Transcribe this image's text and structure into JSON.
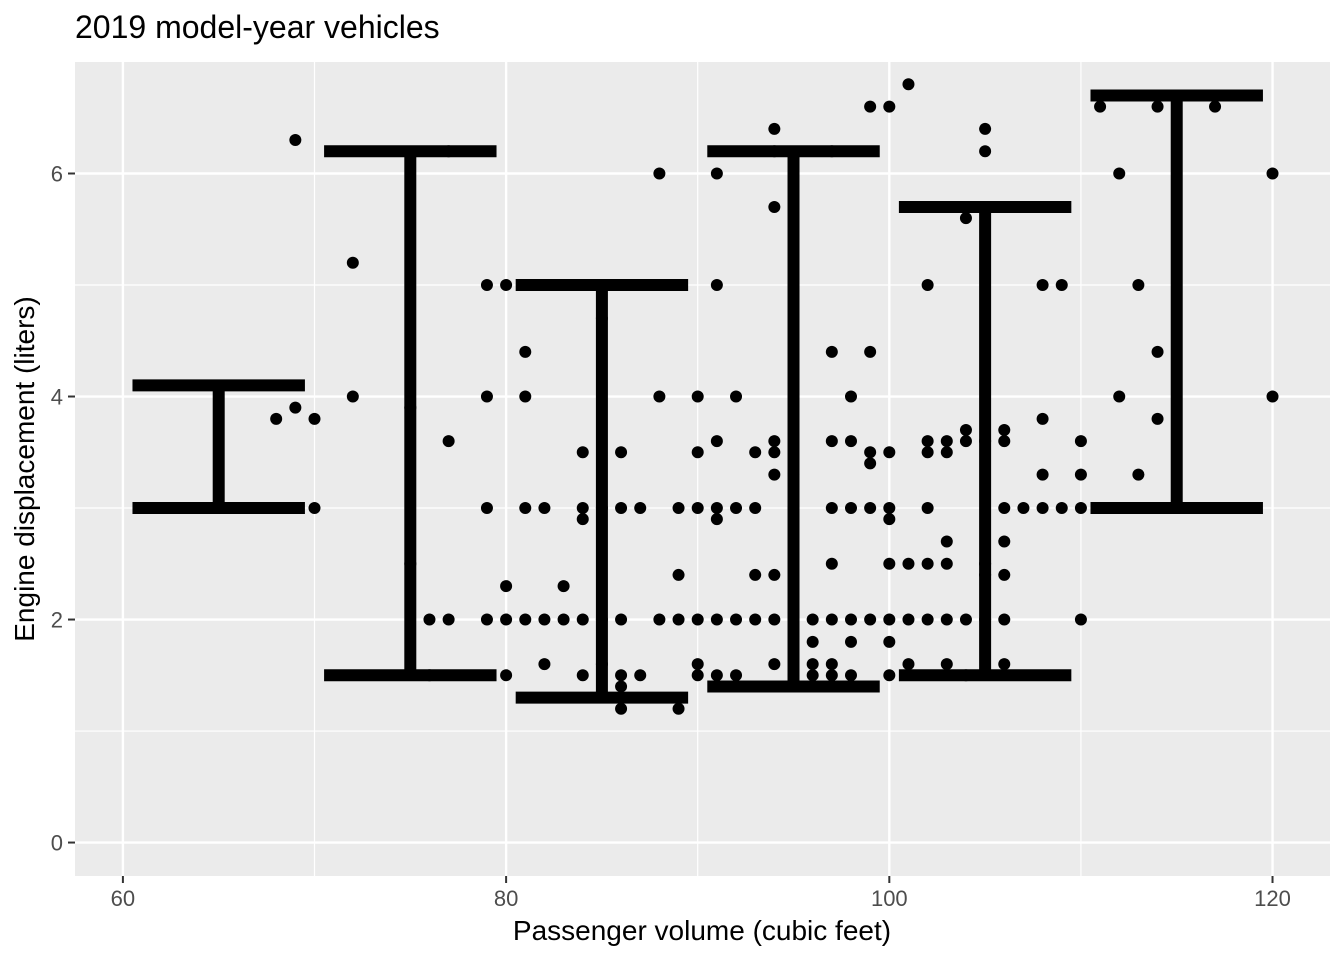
{
  "chart_data": {
    "type": "scatter",
    "title": "2019 model-year vehicles",
    "xlabel": "Passenger volume (cubic feet)",
    "ylabel": "Engine displacement (liters)",
    "xlim": [
      57.5,
      123
    ],
    "ylim": [
      -0.3,
      7.0
    ],
    "x_ticks": [
      60,
      80,
      100,
      120
    ],
    "y_ticks": [
      0,
      2,
      4,
      6
    ],
    "grid": true,
    "legend": "none",
    "colors": {
      "panel": "#EBEBEB",
      "grid": "#FFFFFF",
      "mark": "#000000",
      "text": "#4D4D4D"
    },
    "error_bars": [
      {
        "x": 65,
        "ymin": 3.0,
        "ymax": 4.1
      },
      {
        "x": 75,
        "ymin": 1.5,
        "ymax": 6.2
      },
      {
        "x": 85,
        "ymin": 1.3,
        "ymax": 5.0
      },
      {
        "x": 95,
        "ymin": 1.4,
        "ymax": 6.2
      },
      {
        "x": 105,
        "ymin": 1.5,
        "ymax": 5.7
      },
      {
        "x": 115,
        "ymin": 3.0,
        "ymax": 6.7
      }
    ],
    "points": [
      [
        68,
        3.8
      ],
      [
        68,
        3.0
      ],
      [
        69,
        6.3
      ],
      [
        69,
        3.9
      ],
      [
        70,
        3.8
      ],
      [
        70,
        3.0
      ],
      [
        72,
        5.2
      ],
      [
        72,
        4.0
      ],
      [
        75,
        3.9
      ],
      [
        75,
        2.5
      ],
      [
        76,
        2.0
      ],
      [
        76,
        1.5
      ],
      [
        77,
        6.2
      ],
      [
        77,
        3.6
      ],
      [
        77,
        2.0
      ],
      [
        79,
        5.0
      ],
      [
        79,
        4.0
      ],
      [
        79,
        3.0
      ],
      [
        79,
        2.0
      ],
      [
        80,
        5.0
      ],
      [
        80,
        2.3
      ],
      [
        80,
        2.0
      ],
      [
        80,
        1.5
      ],
      [
        81,
        4.4
      ],
      [
        81,
        4.0
      ],
      [
        81,
        3.0
      ],
      [
        81,
        2.0
      ],
      [
        82,
        3.0
      ],
      [
        82,
        2.0
      ],
      [
        82,
        1.6
      ],
      [
        83,
        5.0
      ],
      [
        83,
        2.3
      ],
      [
        83,
        2.0
      ],
      [
        84,
        3.5
      ],
      [
        84,
        3.0
      ],
      [
        84,
        2.9
      ],
      [
        84,
        2.0
      ],
      [
        84,
        1.5
      ],
      [
        85,
        4.7
      ],
      [
        85,
        3.0
      ],
      [
        85,
        2.0
      ],
      [
        85,
        1.6
      ],
      [
        86,
        5.0
      ],
      [
        86,
        3.5
      ],
      [
        86,
        3.0
      ],
      [
        86,
        2.0
      ],
      [
        86,
        1.5
      ],
      [
        86,
        1.4
      ],
      [
        86,
        1.2
      ],
      [
        87,
        3.0
      ],
      [
        87,
        1.5
      ],
      [
        88,
        6.0
      ],
      [
        88,
        4.0
      ],
      [
        88,
        2.0
      ],
      [
        89,
        3.0
      ],
      [
        89,
        2.4
      ],
      [
        89,
        2.0
      ],
      [
        89,
        1.2
      ],
      [
        90,
        4.0
      ],
      [
        90,
        3.5
      ],
      [
        90,
        3.0
      ],
      [
        90,
        2.0
      ],
      [
        90,
        1.6
      ],
      [
        90,
        1.5
      ],
      [
        91,
        6.0
      ],
      [
        91,
        5.0
      ],
      [
        91,
        3.6
      ],
      [
        91,
        3.0
      ],
      [
        91,
        2.9
      ],
      [
        91,
        2.0
      ],
      [
        91,
        1.5
      ],
      [
        92,
        4.0
      ],
      [
        92,
        3.0
      ],
      [
        92,
        2.0
      ],
      [
        92,
        1.5
      ],
      [
        93,
        3.5
      ],
      [
        93,
        3.0
      ],
      [
        93,
        2.4
      ],
      [
        93,
        2.0
      ],
      [
        93,
        1.4
      ],
      [
        94,
        6.4
      ],
      [
        94,
        6.2
      ],
      [
        94,
        5.7
      ],
      [
        94,
        3.6
      ],
      [
        94,
        3.5
      ],
      [
        94,
        3.3
      ],
      [
        94,
        2.4
      ],
      [
        94,
        2.0
      ],
      [
        94,
        1.6
      ],
      [
        94,
        1.4
      ],
      [
        95,
        3.3
      ],
      [
        95,
        3.0
      ],
      [
        95,
        2.0
      ],
      [
        95,
        1.5
      ],
      [
        96,
        2.0
      ],
      [
        96,
        1.8
      ],
      [
        96,
        1.6
      ],
      [
        96,
        1.5
      ],
      [
        97,
        6.2
      ],
      [
        97,
        4.4
      ],
      [
        97,
        3.6
      ],
      [
        97,
        3.0
      ],
      [
        97,
        2.5
      ],
      [
        97,
        2.0
      ],
      [
        97,
        1.6
      ],
      [
        97,
        1.5
      ],
      [
        98,
        4.0
      ],
      [
        98,
        3.6
      ],
      [
        98,
        3.0
      ],
      [
        98,
        2.0
      ],
      [
        98,
        1.8
      ],
      [
        98,
        1.5
      ],
      [
        99,
        6.6
      ],
      [
        99,
        4.4
      ],
      [
        99,
        3.5
      ],
      [
        99,
        3.4
      ],
      [
        99,
        3.0
      ],
      [
        99,
        2.0
      ],
      [
        100,
        6.6
      ],
      [
        100,
        3.5
      ],
      [
        100,
        3.0
      ],
      [
        100,
        2.9
      ],
      [
        100,
        2.5
      ],
      [
        100,
        2.0
      ],
      [
        100,
        1.8
      ],
      [
        100,
        1.5
      ],
      [
        101,
        6.8
      ],
      [
        101,
        2.5
      ],
      [
        101,
        2.0
      ],
      [
        101,
        1.6
      ],
      [
        102,
        5.0
      ],
      [
        102,
        3.6
      ],
      [
        102,
        3.5
      ],
      [
        102,
        3.0
      ],
      [
        102,
        2.5
      ],
      [
        102,
        2.0
      ],
      [
        103,
        3.6
      ],
      [
        103,
        3.5
      ],
      [
        103,
        2.7
      ],
      [
        103,
        2.5
      ],
      [
        103,
        2.0
      ],
      [
        103,
        1.6
      ],
      [
        104,
        5.6
      ],
      [
        104,
        3.7
      ],
      [
        104,
        3.6
      ],
      [
        104,
        2.0
      ],
      [
        104,
        1.5
      ],
      [
        105,
        6.4
      ],
      [
        105,
        6.2
      ],
      [
        105,
        3.6
      ],
      [
        105,
        2.5
      ],
      [
        105,
        2.4
      ],
      [
        105,
        2.0
      ],
      [
        106,
        5.7
      ],
      [
        106,
        3.7
      ],
      [
        106,
        3.6
      ],
      [
        106,
        3.0
      ],
      [
        106,
        2.7
      ],
      [
        106,
        2.4
      ],
      [
        106,
        2.0
      ],
      [
        106,
        1.6
      ],
      [
        107,
        3.0
      ],
      [
        108,
        5.0
      ],
      [
        108,
        3.8
      ],
      [
        108,
        3.3
      ],
      [
        108,
        3.0
      ],
      [
        109,
        5.0
      ],
      [
        109,
        3.0
      ],
      [
        110,
        3.6
      ],
      [
        110,
        3.3
      ],
      [
        110,
        3.0
      ],
      [
        110,
        2.0
      ],
      [
        111,
        6.6
      ],
      [
        112,
        6.0
      ],
      [
        112,
        4.0
      ],
      [
        112,
        3.0
      ],
      [
        113,
        5.0
      ],
      [
        113,
        3.3
      ],
      [
        114,
        6.6
      ],
      [
        114,
        4.4
      ],
      [
        114,
        3.8
      ],
      [
        114,
        3.0
      ],
      [
        116,
        6.7
      ],
      [
        117,
        6.6
      ],
      [
        120,
        6.0
      ],
      [
        120,
        4.0
      ]
    ]
  }
}
